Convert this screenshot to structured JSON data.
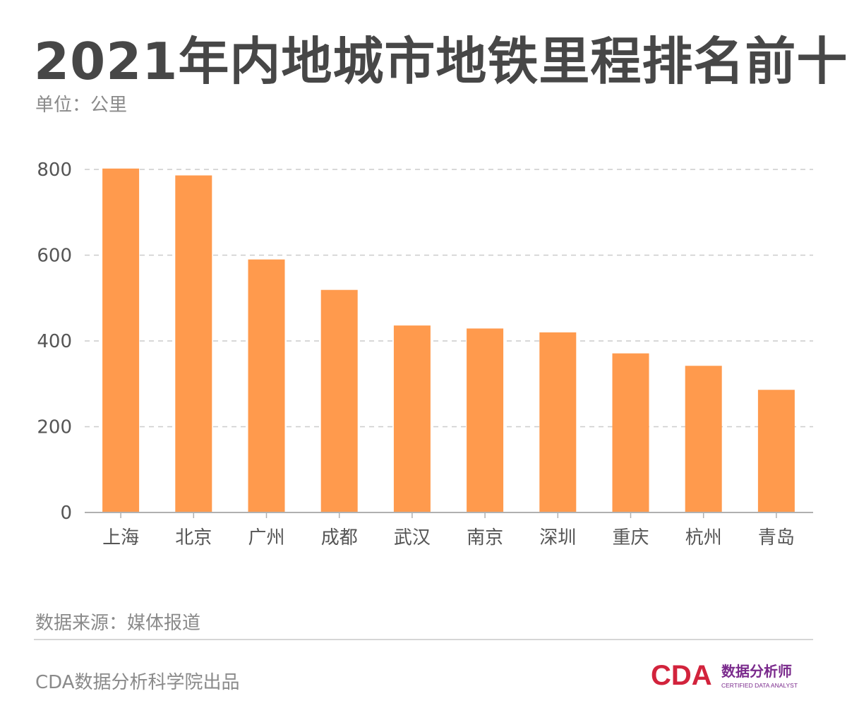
{
  "header": {
    "title": "2021年内地城市地铁里程排名前十",
    "unit": "单位：公里"
  },
  "footer": {
    "source": "数据来源：媒体报道",
    "credit": "CDA数据分析科学院出品",
    "logo": {
      "letters": "CDA",
      "cn": "数据分析师",
      "en": "CERTIFIED DATA ANALYST"
    }
  },
  "colors": {
    "bar": "#ff9a4d",
    "grid": "#cccccc",
    "axis": "#b0b0b0",
    "tick_text": "#555555",
    "logo_red": "#d2233c",
    "logo_purple": "#7a2a8c"
  },
  "chart_data": {
    "type": "bar",
    "categories": [
      "上海",
      "北京",
      "广州",
      "成都",
      "武汉",
      "南京",
      "深圳",
      "重庆",
      "杭州",
      "青岛"
    ],
    "values": [
      802,
      786,
      590,
      519,
      436,
      429,
      420,
      371,
      342,
      286
    ],
    "ylim": [
      0,
      800
    ],
    "yticks": [
      0,
      200,
      400,
      600,
      800
    ],
    "grid": true,
    "legend": "none"
  }
}
